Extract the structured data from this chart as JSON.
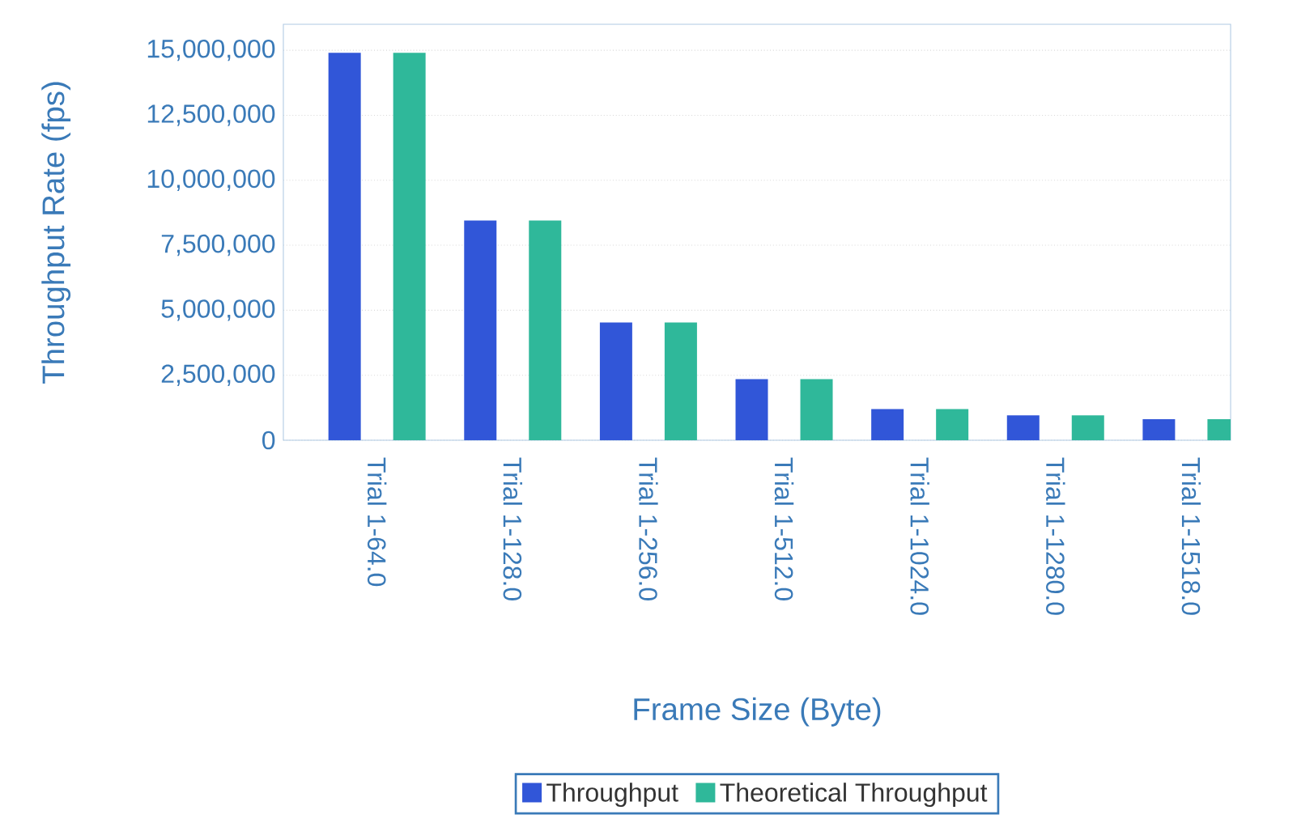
{
  "chart_data": {
    "type": "bar",
    "xlabel": "Frame Size (Byte)",
    "ylabel": "Throughput Rate (fps)",
    "categories": [
      "Trial 1-64.0",
      "Trial 1-128.0",
      "Trial 1-256.0",
      "Trial 1-512.0",
      "Trial 1-1024.0",
      "Trial 1-1280.0",
      "Trial 1-1518.0"
    ],
    "series": [
      {
        "name": "Throughput",
        "color": "#3156d8",
        "values": [
          14900000,
          8450000,
          4530000,
          2350000,
          1200000,
          960000,
          810000
        ]
      },
      {
        "name": "Theoretical Throughput",
        "color": "#2fb89a",
        "values": [
          14900000,
          8450000,
          4530000,
          2350000,
          1200000,
          960000,
          810000
        ]
      }
    ],
    "ylim": [
      0,
      16000000
    ],
    "yticks": [
      {
        "value": 0,
        "label": "0"
      },
      {
        "value": 2500000,
        "label": "2,500,000"
      },
      {
        "value": 5000000,
        "label": "5,000,000"
      },
      {
        "value": 7500000,
        "label": "7,500,000"
      },
      {
        "value": 10000000,
        "label": "10,000,000"
      },
      {
        "value": 12500000,
        "label": "12,500,000"
      },
      {
        "value": 15000000,
        "label": "15,000,000"
      }
    ],
    "grid": "y",
    "legend": "bottom"
  }
}
